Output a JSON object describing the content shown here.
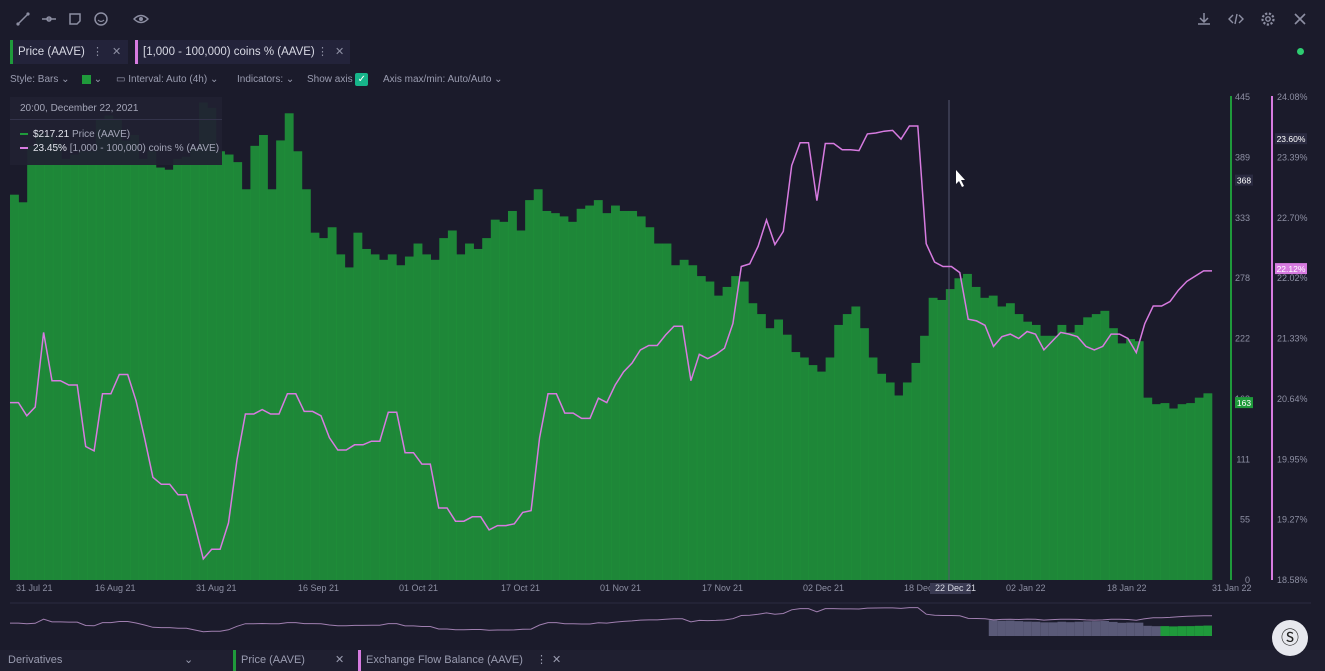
{
  "toolbar": {
    "icons": [
      "line-tool-icon",
      "horizontal-line-icon",
      "note-icon",
      "emoji-icon",
      "eye-icon"
    ],
    "right_icons": [
      "download-icon",
      "code-icon",
      "gear-icon",
      "close-icon"
    ]
  },
  "tabs": [
    {
      "label": "Price (AAVE)",
      "color": "#1f9a3b"
    },
    {
      "label": "[1,000 - 100,000) coins % (AAVE)",
      "color": "#d77be0"
    }
  ],
  "options": {
    "style": "Style: Bars",
    "interval": "Interval: Auto (4h)",
    "indicators": "Indicators:",
    "show_axis": "Show axis",
    "axis_maxmin": "Axis max/min: Auto/Auto"
  },
  "tooltip": {
    "date": "20:00, December 22, 2021",
    "price_value": "$217.21",
    "price_label": "Price (AAVE)",
    "holders_value": "23.45%",
    "holders_label": "[1,000 - 100,000) coins % (AAVE)"
  },
  "bottom_tabs": {
    "menu": "Derivatives",
    "tab1": "Price (AAVE)",
    "tab2": "Exchange Flow Balance (AAVE)"
  },
  "colors": {
    "price": "#1f9a3b",
    "holders": "#d77be0",
    "background": "#1b1b2b"
  },
  "chart_data": {
    "type": "bar",
    "x_labels": [
      "31 Jul 21",
      "16 Aug 21",
      "31 Aug 21",
      "16 Sep 21",
      "01 Oct 21",
      "17 Oct 21",
      "01 Nov 21",
      "17 Nov 21",
      "02 Dec 21",
      "18 Dec",
      "22 Dec 21",
      "02 Jan 22",
      "18 Jan 22",
      "31 Jan 22"
    ],
    "y_left": {
      "ticks": [
        "445",
        "389",
        "333",
        "278",
        "222",
        "163",
        "111",
        "55",
        "0"
      ],
      "range": [
        0,
        445
      ],
      "highlight": [
        "368",
        "163"
      ]
    },
    "y_right": {
      "ticks": [
        "24.08%",
        "23.39%",
        "22.70%",
        "22.02%",
        "21.33%",
        "20.64%",
        "19.95%",
        "19.27%",
        "18.58%"
      ],
      "range": [
        18.58,
        24.08
      ],
      "highlight": [
        "23.60%",
        "22.12%"
      ]
    },
    "series": [
      {
        "name": "Price (AAVE)",
        "type": "bar",
        "color": "#1f9a3b",
        "values": [
          355,
          348,
          400,
          412,
          410,
          402,
          388,
          392,
          395,
          395,
          425,
          428,
          425,
          405,
          410,
          388,
          395,
          380,
          378,
          388,
          390,
          398,
          440,
          435,
          395,
          392,
          385,
          360,
          400,
          410,
          360,
          405,
          430,
          395,
          360,
          320,
          315,
          325,
          300,
          288,
          320,
          305,
          300,
          295,
          300,
          290,
          298,
          310,
          300,
          295,
          315,
          322,
          300,
          310,
          305,
          315,
          332,
          330,
          340,
          322,
          350,
          360,
          340,
          338,
          335,
          330,
          342,
          345,
          350,
          338,
          345,
          340,
          340,
          335,
          325,
          310,
          310,
          290,
          295,
          290,
          280,
          275,
          262,
          270,
          280,
          275,
          255,
          245,
          232,
          240,
          226,
          210,
          205,
          198,
          192,
          205,
          235,
          245,
          252,
          232,
          205,
          190,
          182,
          170,
          182,
          200,
          225,
          260,
          258,
          268,
          278,
          282,
          270,
          260,
          262,
          252,
          255,
          245,
          238,
          235,
          225,
          225,
          235,
          228,
          235,
          242,
          245,
          248,
          232,
          218,
          222,
          220,
          168,
          162,
          163,
          158,
          162,
          163,
          168,
          172
        ]
      },
      {
        "name": "[1,000 - 100,000) coins % (AAVE)",
        "type": "line",
        "color": "#d77be0",
        "values": [
          20.6,
          20.6,
          20.45,
          20.55,
          21.4,
          20.85,
          20.85,
          20.8,
          20.8,
          20.1,
          20.05,
          20.7,
          20.7,
          20.92,
          20.92,
          20.62,
          20.2,
          19.75,
          19.67,
          19.67,
          19.55,
          19.55,
          19.2,
          18.82,
          18.93,
          18.93,
          19.23,
          19.95,
          20.47,
          20.47,
          20.52,
          20.47,
          20.47,
          20.7,
          20.7,
          20.5,
          20.5,
          20.45,
          20.2,
          20.06,
          20.06,
          20.12,
          20.12,
          20.16,
          20.16,
          20.49,
          20.49,
          20.03,
          20.03,
          19.9,
          19.9,
          19.4,
          19.4,
          19.25,
          19.25,
          19.3,
          19.3,
          19.15,
          19.2,
          19.2,
          19.22,
          19.35,
          19.37,
          20.2,
          20.7,
          20.7,
          20.48,
          20.48,
          20.42,
          20.42,
          20.65,
          20.6,
          20.8,
          20.95,
          21.05,
          21.2,
          21.25,
          21.25,
          21.37,
          21.47,
          21.47,
          20.85,
          21.15,
          21.1,
          21.15,
          21.22,
          21.5,
          22.15,
          22.18,
          22.38,
          22.68,
          22.4,
          22.55,
          23.3,
          23.56,
          23.56,
          22.9,
          23.55,
          23.55,
          23.48,
          23.48,
          23.47,
          23.66,
          23.67,
          23.69,
          23.7,
          23.6,
          23.75,
          23.75,
          22.41,
          22.2,
          22.15,
          22.15,
          22.08,
          21.55,
          21.53,
          21.48,
          21.24,
          21.35,
          21.38,
          21.33,
          21.41,
          21.38,
          21.2,
          21.3,
          21.4,
          21.38,
          21.35,
          21.24,
          21.2,
          21.24,
          21.38,
          21.38,
          21.33,
          21.17,
          21.5,
          21.7,
          21.7,
          21.75,
          21.88,
          21.98,
          22.04,
          22.1,
          22.1
        ]
      }
    ],
    "grid": false,
    "legend": "tooltip top-left"
  }
}
